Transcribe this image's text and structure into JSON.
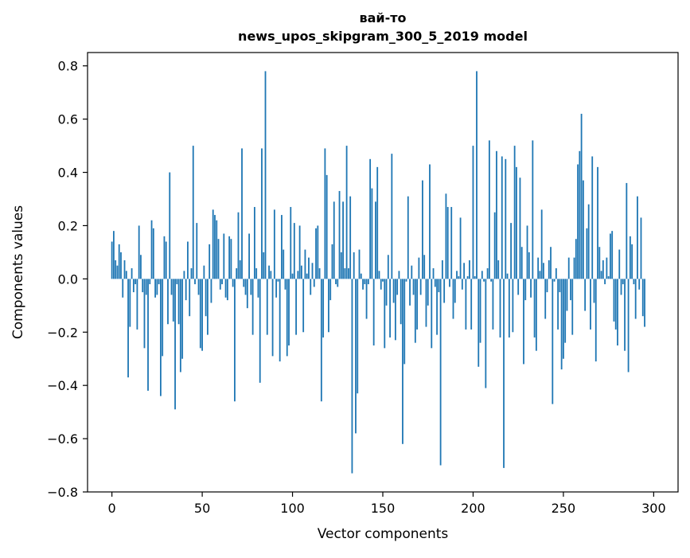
{
  "chart_data": {
    "type": "bar",
    "title_lines": [
      "вай-то",
      "news_upos_skipgram_300_5_2019 model"
    ],
    "xlabel": "Vector components",
    "ylabel": "Components values",
    "xlim": [
      -13.5,
      313.5
    ],
    "ylim": [
      -0.8,
      0.85
    ],
    "xticks": [
      0,
      50,
      100,
      150,
      200,
      250,
      300
    ],
    "yticks": [
      -0.8,
      -0.6,
      -0.4,
      -0.2,
      0.0,
      0.2,
      0.4,
      0.6,
      0.8
    ],
    "ytick_labels": [
      "−0.8",
      "−0.6",
      "−0.4",
      "−0.2",
      "0.0",
      "0.2",
      "0.4",
      "0.6",
      "0.8"
    ],
    "grid": false,
    "bar_color": "#1f77b4",
    "values": [
      0.14,
      0.18,
      0.07,
      0.05,
      0.13,
      0.1,
      -0.07,
      0.07,
      0.03,
      -0.37,
      -0.18,
      0.04,
      -0.05,
      -0.02,
      -0.19,
      0.2,
      0.09,
      -0.05,
      -0.26,
      -0.06,
      -0.42,
      -0.02,
      0.22,
      0.19,
      -0.07,
      -0.06,
      -0.02,
      -0.44,
      -0.29,
      0.16,
      0.14,
      -0.17,
      0.4,
      -0.06,
      -0.16,
      -0.49,
      -0.02,
      -0.17,
      -0.35,
      -0.3,
      0.03,
      -0.08,
      0.14,
      -0.14,
      0.04,
      0.5,
      -0.02,
      0.21,
      -0.06,
      -0.26,
      -0.27,
      0.05,
      -0.14,
      -0.21,
      0.13,
      -0.09,
      0.26,
      0.24,
      0.22,
      0.15,
      -0.04,
      -0.02,
      0.17,
      -0.07,
      -0.08,
      0.16,
      0.15,
      -0.03,
      -0.46,
      0.04,
      0.25,
      0.07,
      0.49,
      -0.03,
      -0.06,
      -0.11,
      0.17,
      -0.06,
      -0.21,
      0.27,
      0.04,
      -0.07,
      -0.39,
      0.49,
      0.1,
      0.78,
      -0.21,
      0.05,
      0.03,
      -0.29,
      0.26,
      -0.07,
      -0.01,
      -0.31,
      0.24,
      0.11,
      -0.04,
      -0.29,
      -0.25,
      0.27,
      0.02,
      0.21,
      -0.21,
      0.03,
      0.2,
      0.05,
      -0.2,
      0.11,
      0.02,
      0.08,
      -0.06,
      0.06,
      -0.03,
      0.19,
      0.2,
      0.04,
      -0.46,
      -0.22,
      0.49,
      0.39,
      -0.2,
      -0.08,
      0.13,
      0.29,
      -0.02,
      -0.03,
      0.33,
      0.1,
      0.29,
      0.04,
      0.5,
      0.04,
      0.31,
      -0.73,
      0.1,
      -0.58,
      -0.43,
      0.11,
      0.02,
      -0.04,
      -0.02,
      -0.15,
      -0.02,
      0.45,
      0.34,
      -0.25,
      0.29,
      0.42,
      0.03,
      -0.04,
      -0.01,
      -0.26,
      -0.1,
      0.09,
      -0.22,
      0.47,
      -0.09,
      -0.23,
      -0.06,
      0.03,
      -0.17,
      -0.62,
      -0.32,
      -0.01,
      0.31,
      -0.1,
      0.05,
      -0.06,
      -0.24,
      -0.19,
      0.08,
      -0.06,
      0.37,
      0.09,
      -0.18,
      -0.1,
      0.43,
      -0.26,
      0.04,
      -0.03,
      -0.21,
      -0.05,
      -0.7,
      0.07,
      -0.09,
      0.32,
      0.27,
      -0.03,
      0.27,
      -0.15,
      -0.09,
      0.03,
      0.01,
      0.23,
      -0.04,
      0.06,
      -0.19,
      0.01,
      0.07,
      -0.19,
      0.5,
      0.01,
      0.78,
      -0.33,
      -0.24,
      0.03,
      -0.01,
      -0.41,
      0.04,
      0.52,
      -0.01,
      -0.19,
      0.25,
      0.48,
      0.07,
      -0.22,
      0.46,
      -0.71,
      0.45,
      0.02,
      -0.22,
      0.21,
      -0.2,
      0.5,
      0.42,
      -0.06,
      0.38,
      0.12,
      -0.32,
      -0.08,
      0.2,
      0.1,
      -0.07,
      0.52,
      -0.22,
      -0.27,
      0.08,
      0.03,
      0.26,
      0.06,
      -0.15,
      -0.05,
      0.07,
      0.12,
      -0.47,
      -0.01,
      0.04,
      -0.19,
      -0.05,
      -0.34,
      -0.3,
      -0.24,
      -0.12,
      0.08,
      -0.08,
      -0.21,
      0.08,
      0.15,
      0.43,
      0.48,
      0.62,
      0.37,
      -0.12,
      0.19,
      0.28,
      -0.19,
      0.46,
      -0.09,
      -0.31,
      0.42,
      0.12,
      0.03,
      0.07,
      -0.02,
      0.08,
      0.01,
      0.17,
      0.18,
      -0.16,
      -0.19,
      -0.25,
      0.11,
      -0.06,
      -0.02,
      -0.27,
      0.36,
      -0.35,
      0.16,
      0.13,
      -0.02,
      -0.15,
      0.31,
      -0.04,
      0.23,
      -0.14,
      -0.18
    ]
  }
}
